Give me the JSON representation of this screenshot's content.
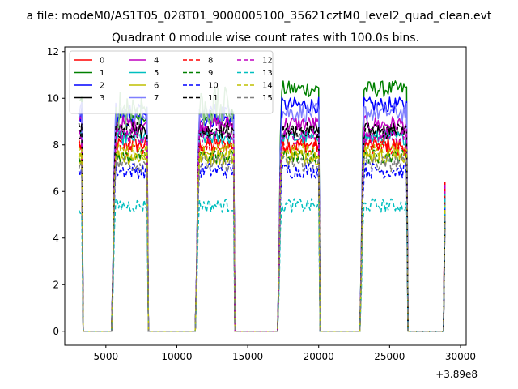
{
  "chart_data": {
    "type": "line",
    "suptitle": "a file: modeM0/AS1T05_028T01_9000005100_35621cztM0_level2_quad_clean.evt",
    "title": "Quadrant 0 module wise count rates with 100.0s bins.",
    "xlabel": "",
    "ylabel": "",
    "x_offset_label": "+3.89e8",
    "xlim": [
      2100,
      30400
    ],
    "ylim": [
      -0.6,
      12.2
    ],
    "xticks": [
      5000,
      10000,
      15000,
      20000,
      25000,
      30000
    ],
    "xtick_labels": [
      "5000",
      "10000",
      "15000",
      "20000",
      "25000",
      "30000"
    ],
    "yticks": [
      0,
      2,
      4,
      6,
      8,
      10,
      12
    ],
    "ytick_labels": [
      "0",
      "2",
      "4",
      "6",
      "8",
      "10",
      "12"
    ],
    "grid": false,
    "legend_position": "top-left",
    "legend_columns": 4,
    "segments": [
      {
        "start": 3100,
        "end": 3300
      },
      {
        "start": 5500,
        "end": 7900
      },
      {
        "start": 11400,
        "end": 14000
      },
      {
        "start": 17200,
        "end": 20000
      },
      {
        "start": 23000,
        "end": 26200
      },
      {
        "start": 28800,
        "end": 28900
      }
    ],
    "gaps": [
      {
        "from": 3400,
        "to": 5400
      },
      {
        "from": 8000,
        "to": 11300
      },
      {
        "from": 14100,
        "to": 17100
      },
      {
        "from": 20100,
        "to": 22900
      },
      {
        "from": 26300,
        "to": 28700
      }
    ],
    "series": [
      {
        "name": "0",
        "color": "#ff0000",
        "dashed": false,
        "level": 8.0,
        "first_level": 8.0,
        "spread": 0.35
      },
      {
        "name": "1",
        "color": "#008000",
        "dashed": false,
        "level": 9.2,
        "first_level": 9.7,
        "spread": 0.35,
        "late_level": 10.4
      },
      {
        "name": "2",
        "color": "#0000ff",
        "dashed": false,
        "level": 9.1,
        "first_level": 9.3,
        "spread": 0.35,
        "late_level": 9.7
      },
      {
        "name": "3",
        "color": "#000000",
        "dashed": false,
        "level": 8.6,
        "first_level": 8.6,
        "spread": 0.35
      },
      {
        "name": "4",
        "color": "#bf00bf",
        "dashed": false,
        "level": 8.9,
        "first_level": 8.9,
        "spread": 0.35
      },
      {
        "name": "5",
        "color": "#00bfbf",
        "dashed": false,
        "level": 8.3,
        "first_level": 8.3,
        "spread": 0.3
      },
      {
        "name": "6",
        "color": "#bfbf00",
        "dashed": false,
        "level": 7.5,
        "first_level": 7.5,
        "spread": 0.35
      },
      {
        "name": "7",
        "color": "#7f7fff",
        "dashed": false,
        "level": 9.4,
        "first_level": 9.5,
        "spread": 0.4
      },
      {
        "name": "8",
        "color": "#ff0000",
        "dashed": true,
        "level": 7.9,
        "first_level": 7.9,
        "spread": 0.35
      },
      {
        "name": "9",
        "color": "#008000",
        "dashed": true,
        "level": 7.5,
        "first_level": 7.5,
        "spread": 0.3
      },
      {
        "name": "10",
        "color": "#0000ff",
        "dashed": true,
        "level": 6.9,
        "first_level": 7.0,
        "spread": 0.35
      },
      {
        "name": "11",
        "color": "#000000",
        "dashed": true,
        "level": 8.6,
        "first_level": 8.7,
        "spread": 0.35
      },
      {
        "name": "12",
        "color": "#bf00bf",
        "dashed": true,
        "level": 8.4,
        "first_level": 8.4,
        "spread": 0.35
      },
      {
        "name": "13",
        "color": "#00bfbf",
        "dashed": true,
        "level": 5.4,
        "first_level": 5.3,
        "spread": 0.3
      },
      {
        "name": "14",
        "color": "#bfbf00",
        "dashed": true,
        "level": 7.7,
        "first_level": 7.7,
        "spread": 0.35
      },
      {
        "name": "15",
        "color": "#7f7f7f",
        "dashed": true,
        "level": 7.2,
        "first_level": 7.2,
        "spread": 0.35
      }
    ],
    "extra_series": [
      {
        "color": "#7fbf7f",
        "level": 9.6,
        "spread": 0.9,
        "segments": [
          1,
          2
        ]
      }
    ],
    "last_point": {
      "x": 28900,
      "y": 6.4
    }
  }
}
